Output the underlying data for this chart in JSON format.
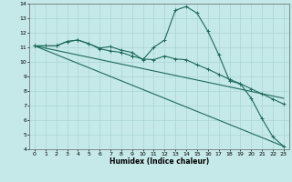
{
  "title": "",
  "xlabel": "Humidex (Indice chaleur)",
  "ylabel": "",
  "xlim": [
    -0.5,
    23.5
  ],
  "ylim": [
    4,
    14
  ],
  "xticks": [
    0,
    1,
    2,
    3,
    4,
    5,
    6,
    7,
    8,
    9,
    10,
    11,
    12,
    13,
    14,
    15,
    16,
    17,
    18,
    19,
    20,
    21,
    22,
    23
  ],
  "yticks": [
    4,
    5,
    6,
    7,
    8,
    9,
    10,
    11,
    12,
    13,
    14
  ],
  "bg_color": "#c5e8e8",
  "line_color": "#1e6b5a",
  "grid_color": "#aad4d4",
  "lines": [
    {
      "x": [
        0,
        1,
        2,
        3,
        4,
        5,
        6,
        7,
        8,
        9,
        10,
        11,
        12,
        13,
        14,
        15,
        16,
        17,
        18,
        19,
        20,
        21,
        22,
        23
      ],
      "y": [
        11.1,
        11.1,
        11.1,
        11.4,
        11.5,
        11.25,
        10.95,
        11.05,
        10.8,
        10.65,
        10.15,
        11.0,
        11.5,
        13.55,
        13.8,
        13.35,
        12.1,
        10.5,
        8.7,
        8.5,
        7.5,
        6.1,
        4.85,
        4.2
      ],
      "marker": "+"
    },
    {
      "x": [
        0,
        1,
        2,
        3,
        4,
        5,
        6,
        7,
        8,
        9,
        10,
        11,
        12,
        13,
        14,
        15,
        16,
        17,
        18,
        19,
        20,
        21,
        22,
        23
      ],
      "y": [
        11.1,
        11.1,
        11.1,
        11.4,
        11.5,
        11.25,
        10.9,
        10.75,
        10.65,
        10.4,
        10.2,
        10.15,
        10.4,
        10.2,
        10.15,
        9.8,
        9.5,
        9.15,
        8.8,
        8.5,
        8.15,
        7.8,
        7.45,
        7.1
      ],
      "marker": "+"
    },
    {
      "x": [
        0,
        23
      ],
      "y": [
        11.1,
        7.5
      ],
      "marker": null
    },
    {
      "x": [
        0,
        23
      ],
      "y": [
        11.1,
        4.2
      ],
      "marker": null
    }
  ]
}
